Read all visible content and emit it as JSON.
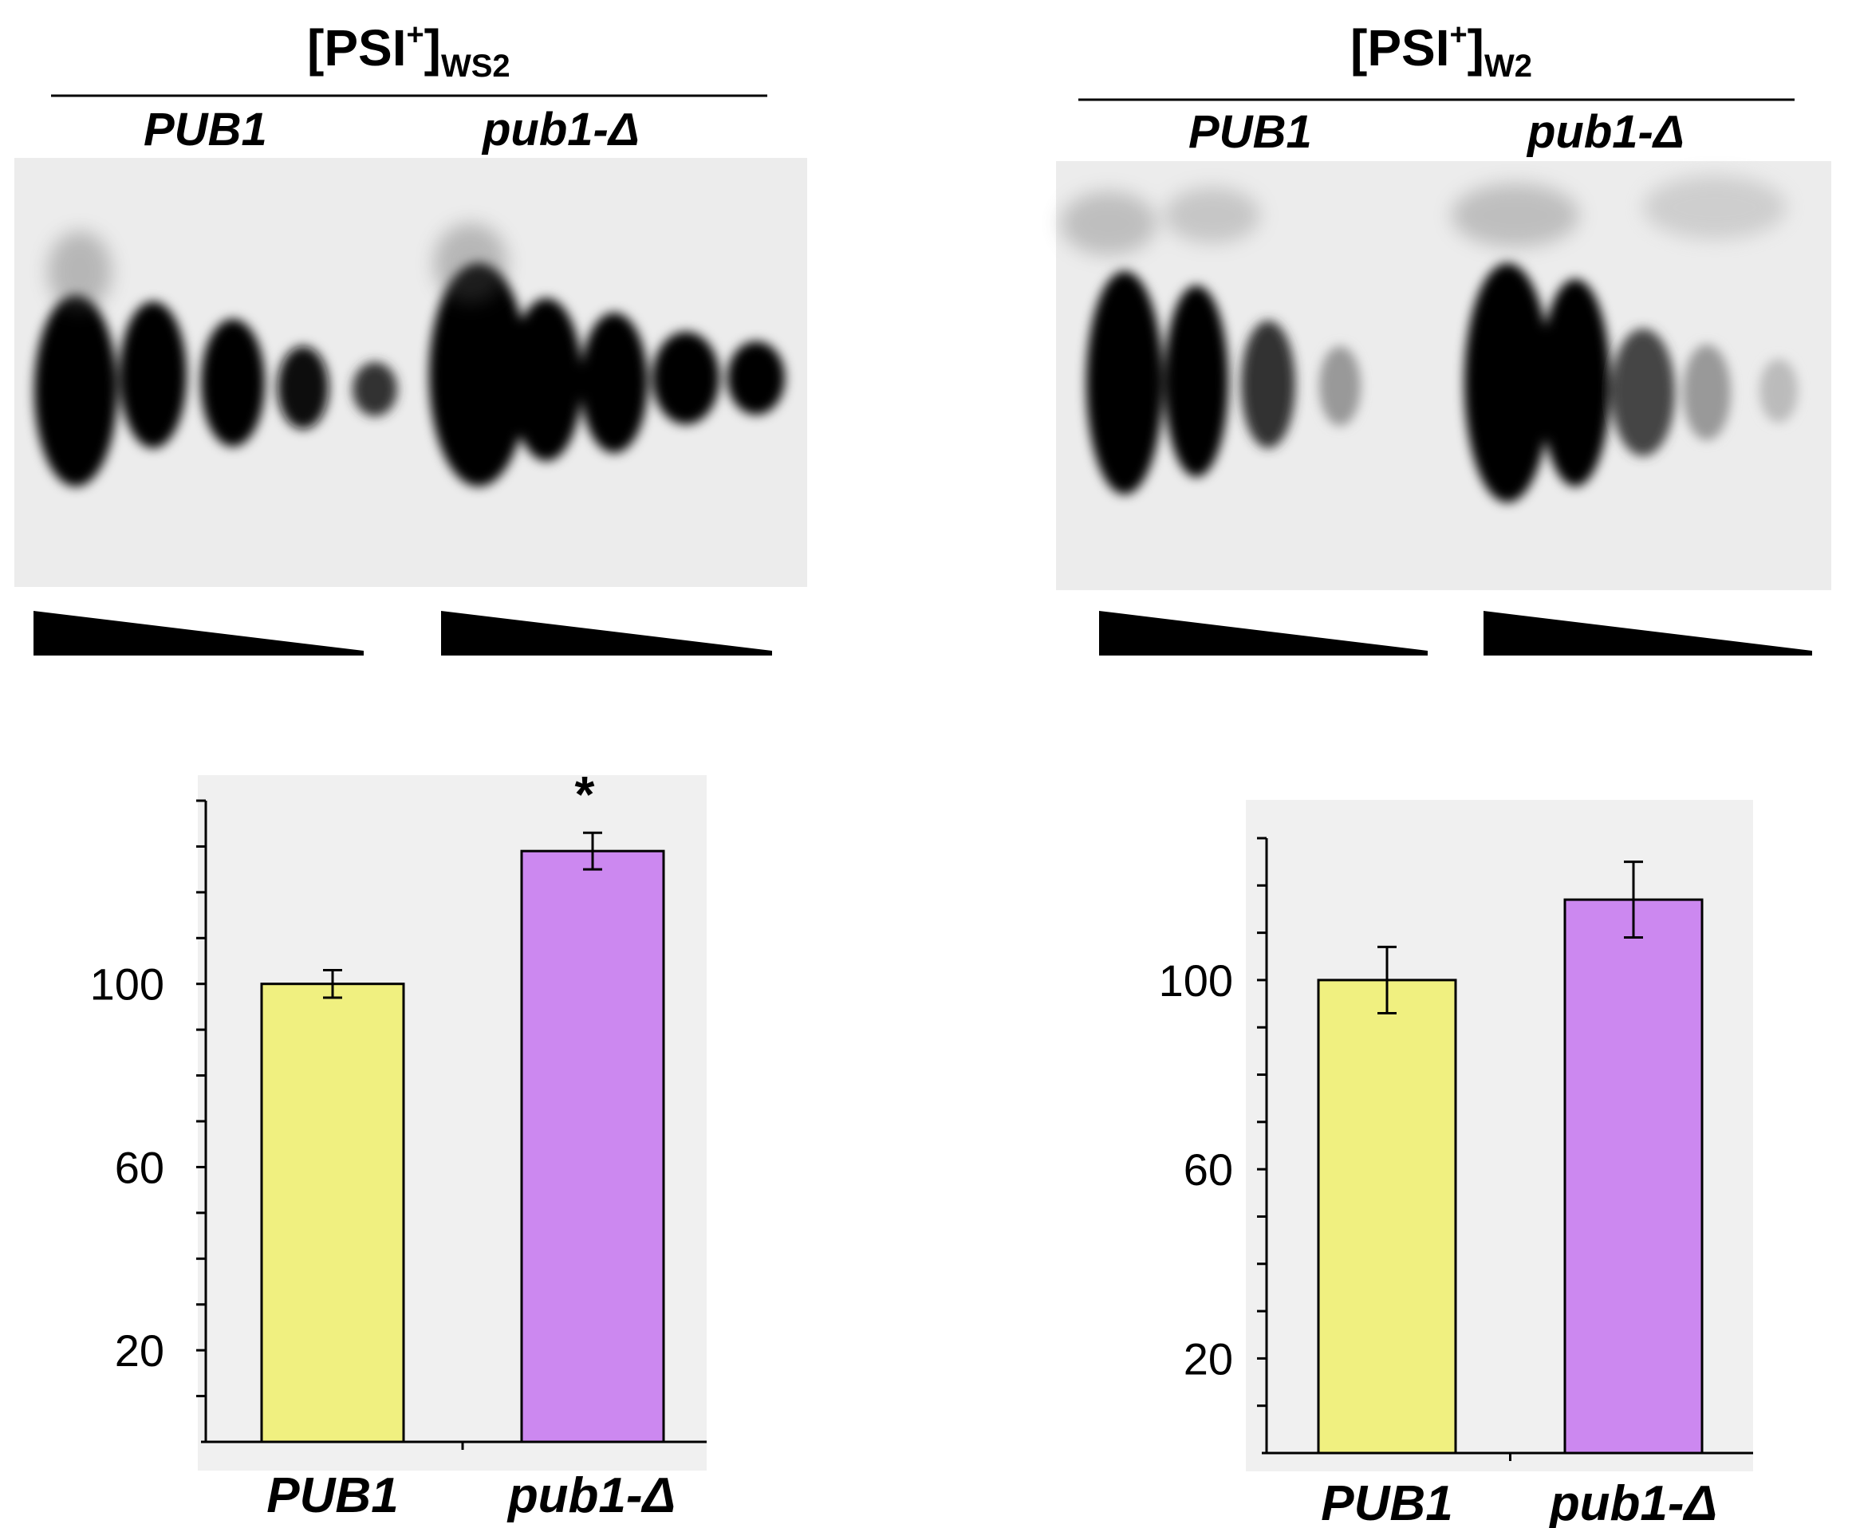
{
  "panels": [
    {
      "title_main": "[PSI",
      "title_sup": "+",
      "title_close": "]",
      "title_sub": "WS2",
      "lane_labels": [
        "PUB1",
        "pub1-Δ"
      ]
    },
    {
      "title_main": "[PSI",
      "title_sup": "+",
      "title_close": "]",
      "title_sub": "W2",
      "lane_labels": [
        "PUB1",
        "pub1-Δ"
      ]
    }
  ],
  "colors": {
    "pub1": "#f0f080",
    "pub1_delta": "#cc88f0",
    "plot_bg": "#f0f0f0",
    "gel_bg": "#ececec",
    "band": "#000000"
  },
  "chart_data": [
    {
      "type": "bar",
      "panel": "[PSI+]WS2",
      "categories": [
        "PUB1",
        "pub1-Δ"
      ],
      "values": [
        100,
        129
      ],
      "errors": [
        3,
        4
      ],
      "annotations": [
        "",
        "*"
      ],
      "yticks": [
        20,
        60,
        100
      ],
      "ylim": [
        0,
        140
      ],
      "xlabel": "",
      "ylabel": ""
    },
    {
      "type": "bar",
      "panel": "[PSI+]W2",
      "categories": [
        "PUB1",
        "pub1-Δ"
      ],
      "values": [
        100,
        117
      ],
      "errors": [
        7,
        8
      ],
      "annotations": [
        "",
        ""
      ],
      "yticks": [
        20,
        60,
        100
      ],
      "ylim": [
        0,
        130
      ],
      "xlabel": "",
      "ylabel": ""
    }
  ]
}
